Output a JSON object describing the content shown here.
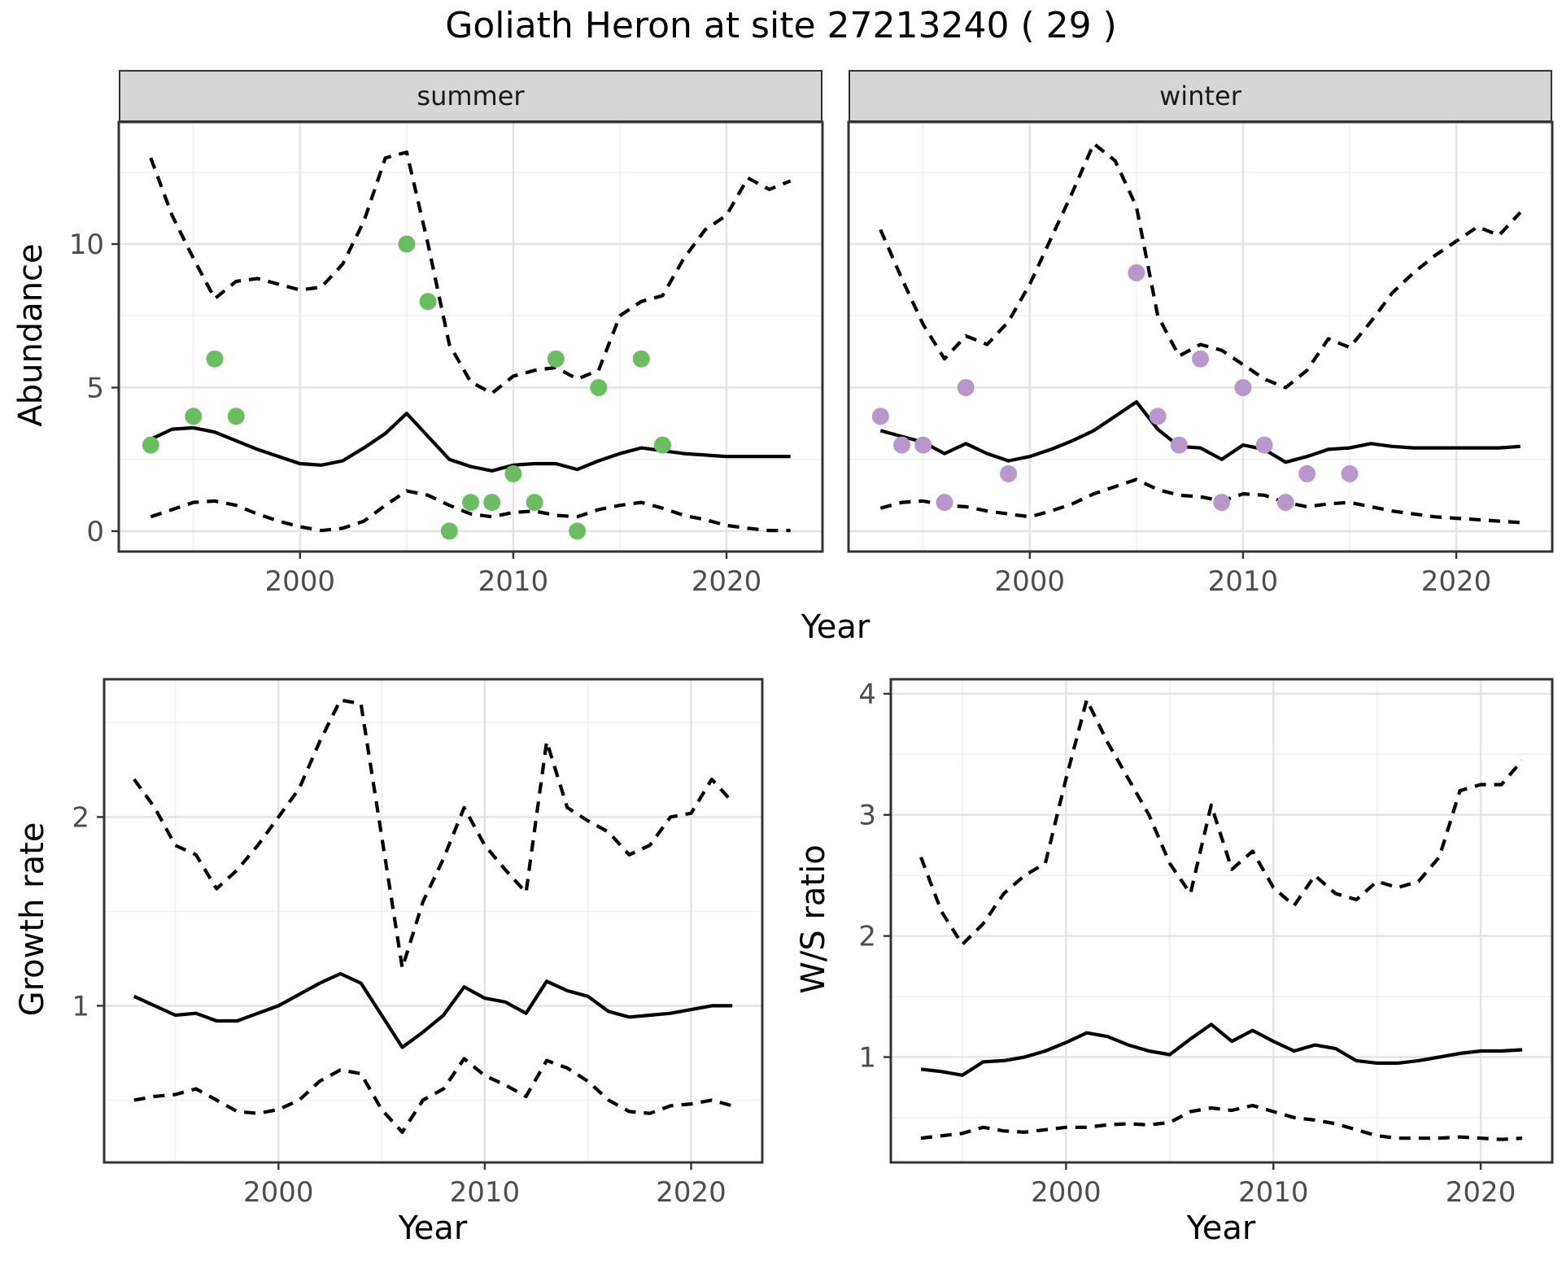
{
  "title": "Goliath Heron at site 27213240 ( 29 )",
  "colors": {
    "summer_points": "#6ABE5F",
    "winter_points": "#B897CC",
    "line": "#000000",
    "strip_bg": "#D6D6D6",
    "grid_major": "#E4E4E4",
    "grid_minor": "#F1F1F1",
    "panel_border": "#333333",
    "tick_text": "#4D4D4D"
  },
  "chart_data": [
    {
      "id": "abundance_summer",
      "type": "line",
      "facet": "summer",
      "xlabel": "Year",
      "ylabel": "Abundance",
      "x": [
        1993,
        1994,
        1995,
        1996,
        1997,
        1998,
        1999,
        2000,
        2001,
        2002,
        2003,
        2004,
        2005,
        2006,
        2007,
        2008,
        2009,
        2010,
        2011,
        2012,
        2013,
        2014,
        2015,
        2016,
        2017,
        2018,
        2019,
        2020,
        2021,
        2022,
        2023
      ],
      "series": [
        {
          "name": "mean",
          "style": "solid",
          "values": [
            3.2,
            3.55,
            3.6,
            3.45,
            3.15,
            2.85,
            2.6,
            2.35,
            2.3,
            2.45,
            2.9,
            3.4,
            4.1,
            3.3,
            2.5,
            2.25,
            2.1,
            2.3,
            2.35,
            2.35,
            2.15,
            2.45,
            2.7,
            2.9,
            2.8,
            2.7,
            2.65,
            2.6,
            2.6,
            2.6,
            2.6
          ]
        },
        {
          "name": "upper_ci",
          "style": "dashed",
          "values": [
            13.0,
            11.0,
            9.5,
            8.1,
            8.7,
            8.8,
            8.6,
            8.4,
            8.5,
            9.3,
            10.8,
            13.0,
            13.2,
            10.0,
            6.5,
            5.2,
            4.8,
            5.4,
            5.6,
            5.7,
            5.3,
            5.6,
            7.5,
            8.0,
            8.2,
            9.5,
            10.5,
            11.0,
            12.3,
            11.9,
            12.2
          ]
        },
        {
          "name": "lower_ci",
          "style": "dashed",
          "values": [
            0.5,
            0.75,
            1.0,
            1.05,
            0.9,
            0.6,
            0.35,
            0.15,
            0.02,
            0.1,
            0.35,
            0.9,
            1.4,
            1.25,
            0.9,
            0.6,
            0.5,
            0.65,
            0.7,
            0.55,
            0.5,
            0.75,
            0.9,
            1.0,
            0.8,
            0.55,
            0.4,
            0.2,
            0.1,
            0.02,
            0.02
          ]
        }
      ],
      "points": {
        "name": "observed_counts",
        "color_key": "summer_points",
        "x": [
          1993,
          1995,
          1996,
          1997,
          2005,
          2006,
          2007,
          2008,
          2009,
          2010,
          2011,
          2012,
          2013,
          2014,
          2016,
          2017
        ],
        "y": [
          3,
          4,
          6,
          4,
          10,
          8,
          0,
          1,
          1,
          2,
          1,
          6,
          0,
          5,
          6,
          3
        ]
      },
      "xlim": [
        1991.5,
        2024.5
      ],
      "ylim": [
        -0.71,
        14.25
      ],
      "xticks": [
        2000,
        2010,
        2020
      ],
      "xminor": [
        1995,
        2005,
        2015
      ],
      "yticks": [
        0,
        5,
        10
      ],
      "yminor": [
        2.5,
        7.5,
        12.5
      ],
      "show_y_axis": true
    },
    {
      "id": "abundance_winter",
      "type": "line",
      "facet": "winter",
      "xlabel": "Year",
      "ylabel": "Abundance",
      "x": [
        1993,
        1994,
        1995,
        1996,
        1997,
        1998,
        1999,
        2000,
        2001,
        2002,
        2003,
        2004,
        2005,
        2006,
        2007,
        2008,
        2009,
        2010,
        2011,
        2012,
        2013,
        2014,
        2015,
        2016,
        2017,
        2018,
        2019,
        2020,
        2021,
        2022,
        2023
      ],
      "series": [
        {
          "name": "mean",
          "style": "solid",
          "values": [
            3.5,
            3.3,
            3.1,
            2.7,
            3.05,
            2.7,
            2.45,
            2.6,
            2.85,
            3.15,
            3.5,
            4.0,
            4.5,
            3.55,
            2.95,
            2.9,
            2.5,
            3.0,
            2.85,
            2.4,
            2.6,
            2.85,
            2.9,
            3.05,
            2.95,
            2.9,
            2.9,
            2.9,
            2.9,
            2.9,
            2.95
          ]
        },
        {
          "name": "upper_ci",
          "style": "dashed",
          "values": [
            10.5,
            8.8,
            7.2,
            6.0,
            6.8,
            6.5,
            7.3,
            8.6,
            10.2,
            11.8,
            13.5,
            12.9,
            11.3,
            7.5,
            6.1,
            6.5,
            6.3,
            5.8,
            5.3,
            5.0,
            5.6,
            6.7,
            6.4,
            7.3,
            8.3,
            9.0,
            9.6,
            10.1,
            10.6,
            10.3,
            11.1
          ]
        },
        {
          "name": "lower_ci",
          "style": "dashed",
          "values": [
            0.8,
            1.0,
            1.05,
            0.9,
            0.85,
            0.7,
            0.6,
            0.5,
            0.7,
            0.95,
            1.3,
            1.55,
            1.8,
            1.45,
            1.25,
            1.2,
            1.05,
            1.3,
            1.25,
            1.0,
            0.85,
            0.95,
            1.0,
            0.85,
            0.7,
            0.6,
            0.5,
            0.45,
            0.4,
            0.35,
            0.3
          ]
        }
      ],
      "points": {
        "name": "observed_counts",
        "color_key": "winter_points",
        "x": [
          1993,
          1994,
          1995,
          1996,
          1997,
          1999,
          2005,
          2006,
          2007,
          2008,
          2009,
          2010,
          2011,
          2012,
          2013,
          2015
        ],
        "y": [
          4,
          3,
          3,
          1,
          5,
          2,
          9,
          4,
          3,
          6,
          1,
          5,
          3,
          1,
          2,
          2
        ]
      },
      "xlim": [
        1991.5,
        2024.5
      ],
      "ylim": [
        -0.71,
        14.25
      ],
      "xticks": [
        2000,
        2010,
        2020
      ],
      "xminor": [
        1995,
        2005,
        2015
      ],
      "yticks": [
        0,
        5,
        10
      ],
      "yminor": [
        2.5,
        7.5,
        12.5
      ],
      "show_y_axis": false
    },
    {
      "id": "growth_rate",
      "type": "line",
      "facet": "",
      "xlabel": "Year",
      "ylabel": "Growth rate",
      "x": [
        1993,
        1994,
        1995,
        1996,
        1997,
        1998,
        1999,
        2000,
        2001,
        2002,
        2003,
        2004,
        2005,
        2006,
        2007,
        2008,
        2009,
        2010,
        2011,
        2012,
        2013,
        2014,
        2015,
        2016,
        2017,
        2018,
        2019,
        2020,
        2021,
        2022
      ],
      "series": [
        {
          "name": "mean",
          "style": "solid",
          "values": [
            1.05,
            1.0,
            0.95,
            0.96,
            0.92,
            0.92,
            0.96,
            1.0,
            1.06,
            1.12,
            1.17,
            1.12,
            0.95,
            0.78,
            0.86,
            0.95,
            1.1,
            1.04,
            1.02,
            0.96,
            1.13,
            1.08,
            1.05,
            0.97,
            0.94,
            0.95,
            0.96,
            0.98,
            1.0,
            1.0
          ]
        },
        {
          "name": "upper_ci",
          "style": "dashed",
          "values": [
            2.2,
            2.05,
            1.85,
            1.8,
            1.62,
            1.72,
            1.85,
            2.0,
            2.15,
            2.4,
            2.62,
            2.6,
            1.9,
            1.2,
            1.55,
            1.78,
            2.05,
            1.85,
            1.72,
            1.6,
            2.4,
            2.05,
            1.98,
            1.92,
            1.8,
            1.85,
            2.0,
            2.02,
            2.2,
            2.08
          ]
        },
        {
          "name": "lower_ci",
          "style": "dashed",
          "values": [
            0.5,
            0.52,
            0.53,
            0.56,
            0.5,
            0.44,
            0.43,
            0.45,
            0.5,
            0.6,
            0.66,
            0.64,
            0.45,
            0.33,
            0.5,
            0.56,
            0.72,
            0.63,
            0.58,
            0.52,
            0.71,
            0.67,
            0.6,
            0.5,
            0.44,
            0.43,
            0.47,
            0.48,
            0.5,
            0.47
          ]
        }
      ],
      "xlim": [
        1991.55,
        2023.45
      ],
      "ylim": [
        0.17,
        2.73
      ],
      "xticks": [
        2000,
        2010,
        2020
      ],
      "xminor": [
        1995,
        2005,
        2015
      ],
      "yticks": [
        1,
        2
      ],
      "yminor": [
        0.5,
        1.5,
        2.5
      ],
      "show_y_axis": true
    },
    {
      "id": "ws_ratio",
      "type": "line",
      "facet": "",
      "xlabel": "Year",
      "ylabel": "W/S ratio",
      "x": [
        1993,
        1994,
        1995,
        1996,
        1997,
        1998,
        1999,
        2000,
        2001,
        2002,
        2003,
        2004,
        2005,
        2006,
        2007,
        2008,
        2009,
        2010,
        2011,
        2012,
        2013,
        2014,
        2015,
        2016,
        2017,
        2018,
        2019,
        2020,
        2021,
        2022
      ],
      "series": [
        {
          "name": "mean",
          "style": "solid",
          "values": [
            0.9,
            0.88,
            0.85,
            0.96,
            0.97,
            1.0,
            1.05,
            1.12,
            1.2,
            1.17,
            1.1,
            1.05,
            1.02,
            1.15,
            1.27,
            1.13,
            1.22,
            1.13,
            1.05,
            1.1,
            1.07,
            0.97,
            0.95,
            0.95,
            0.97,
            1.0,
            1.03,
            1.05,
            1.05,
            1.06
          ]
        },
        {
          "name": "upper_ci",
          "style": "dashed",
          "values": [
            2.65,
            2.2,
            1.93,
            2.1,
            2.35,
            2.5,
            2.6,
            3.3,
            3.95,
            3.6,
            3.3,
            3.0,
            2.6,
            2.35,
            3.08,
            2.55,
            2.7,
            2.4,
            2.25,
            2.5,
            2.35,
            2.3,
            2.45,
            2.4,
            2.45,
            2.65,
            3.2,
            3.25,
            3.25,
            3.45
          ]
        },
        {
          "name": "lower_ci",
          "style": "dashed",
          "values": [
            0.33,
            0.35,
            0.37,
            0.42,
            0.39,
            0.38,
            0.4,
            0.42,
            0.42,
            0.44,
            0.45,
            0.44,
            0.46,
            0.55,
            0.58,
            0.56,
            0.6,
            0.55,
            0.5,
            0.48,
            0.45,
            0.4,
            0.35,
            0.33,
            0.33,
            0.33,
            0.34,
            0.33,
            0.32,
            0.33
          ]
        }
      ],
      "xlim": [
        1991.55,
        2023.45
      ],
      "ylim": [
        0.13,
        4.12
      ],
      "xticks": [
        2000,
        2010,
        2020
      ],
      "xminor": [
        1995,
        2005,
        2015
      ],
      "yticks": [
        1,
        2,
        3,
        4
      ],
      "yminor": [
        0.5,
        1.5,
        2.5,
        3.5
      ],
      "show_y_axis": true
    }
  ]
}
